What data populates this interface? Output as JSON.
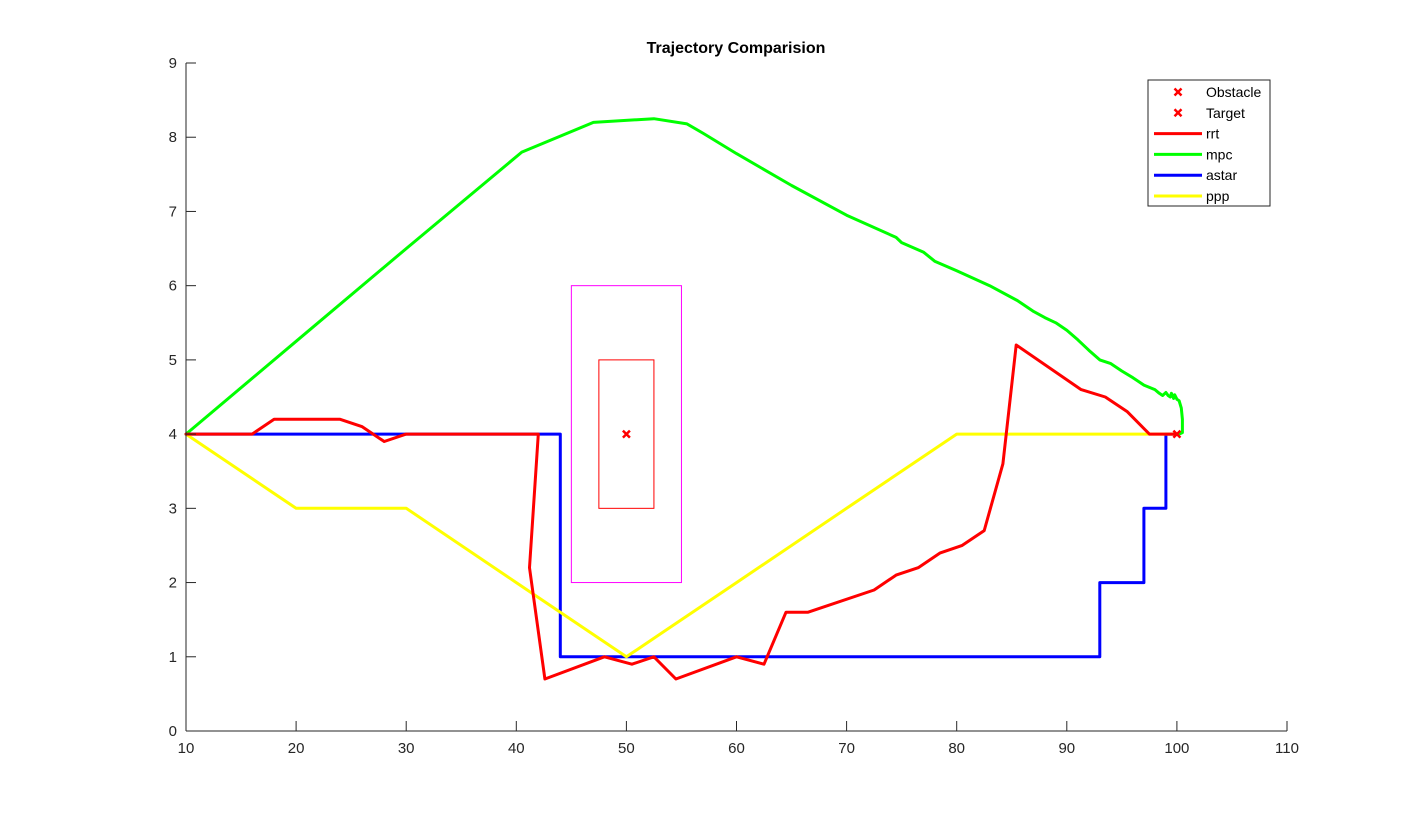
{
  "chart_data": {
    "type": "line",
    "title": "Trajectory Comparision",
    "xlabel": "",
    "ylabel": "",
    "xlim": [
      10,
      110
    ],
    "ylim": [
      0,
      9
    ],
    "xticks": [
      10,
      20,
      30,
      40,
      50,
      60,
      70,
      80,
      90,
      100,
      110
    ],
    "yticks": [
      0,
      1,
      2,
      3,
      4,
      5,
      6,
      7,
      8,
      9
    ],
    "grid": false,
    "legend_position": "top-right",
    "legend": [
      {
        "label": "Obstacle",
        "marker": "x",
        "color": "#ff0000"
      },
      {
        "label": "Target",
        "marker": "x",
        "color": "#ff0000"
      },
      {
        "label": "rrt",
        "color": "#ff0000"
      },
      {
        "label": "mpc",
        "color": "#00ff00"
      },
      {
        "label": "astar",
        "color": "#0000ff"
      },
      {
        "label": "ppp",
        "color": "#ffff00"
      }
    ],
    "markers": [
      {
        "name": "Obstacle",
        "x": 50,
        "y": 4,
        "color": "#ff0000"
      },
      {
        "name": "Target",
        "x": 100,
        "y": 4,
        "color": "#ff0000"
      }
    ],
    "rectangles": [
      {
        "x": [
          45,
          55
        ],
        "y": [
          2,
          6
        ],
        "color": "#ff00ff"
      },
      {
        "x": [
          47.5,
          52.5
        ],
        "y": [
          3,
          5
        ],
        "color": "#ff0000"
      }
    ],
    "series": [
      {
        "name": "rrt",
        "color": "#ff0000",
        "x": [
          10,
          16,
          18,
          24,
          26,
          28,
          30,
          42,
          41.2,
          42.6,
          48,
          50.5,
          52.5,
          54.5,
          60,
          62.5,
          64.5,
          66.5,
          72.5,
          74.5,
          76.5,
          78.5,
          80.5,
          82.5,
          84.2,
          85.4,
          91.3,
          93.5,
          95.5,
          97.5,
          100
        ],
        "y": [
          4,
          4,
          4.2,
          4.2,
          4.1,
          3.9,
          4,
          4,
          2.2,
          0.7,
          1,
          0.9,
          1,
          0.7,
          1,
          0.9,
          1.6,
          1.6,
          1.9,
          2.1,
          2.2,
          2.4,
          2.5,
          2.7,
          3.6,
          5.2,
          4.6,
          4.5,
          4.3,
          4,
          4
        ]
      },
      {
        "name": "mpc",
        "color": "#00ff00",
        "x": [
          10,
          20,
          30,
          40.5,
          47,
          52.5,
          55.5,
          57,
          60,
          65,
          70,
          74.5,
          75,
          77,
          78,
          80,
          83,
          85.5,
          87,
          88,
          89,
          90,
          91,
          92,
          93,
          94,
          95,
          96,
          97,
          97.5,
          98,
          98.4,
          98.7,
          99,
          99.2,
          99.4,
          99.5,
          99.6,
          99.7,
          99.8,
          100,
          100.2,
          100.4,
          100.5,
          100.5,
          100.2,
          100
        ],
        "y": [
          4,
          5.25,
          6.5,
          7.8,
          8.2,
          8.25,
          8.18,
          8.05,
          7.78,
          7.35,
          6.95,
          6.65,
          6.58,
          6.45,
          6.33,
          6.2,
          6.0,
          5.8,
          5.65,
          5.57,
          5.5,
          5.4,
          5.27,
          5.13,
          5.0,
          4.95,
          4.85,
          4.76,
          4.66,
          4.63,
          4.6,
          4.55,
          4.52,
          4.56,
          4.52,
          4.5,
          4.55,
          4.52,
          4.48,
          4.53,
          4.47,
          4.45,
          4.35,
          4.2,
          4.02,
          4.0,
          4
        ]
      },
      {
        "name": "astar",
        "color": "#0000ff",
        "x": [
          10,
          44,
          44,
          93,
          93,
          97,
          97,
          99,
          99,
          100
        ],
        "y": [
          4,
          4,
          1,
          1,
          2,
          2,
          3,
          3,
          4,
          4
        ]
      },
      {
        "name": "ppp",
        "color": "#ffff00",
        "x": [
          10,
          20,
          30,
          40,
          50,
          60,
          70,
          80,
          100
        ],
        "y": [
          4,
          3,
          3,
          2,
          1,
          2,
          3,
          4,
          4
        ]
      }
    ]
  }
}
